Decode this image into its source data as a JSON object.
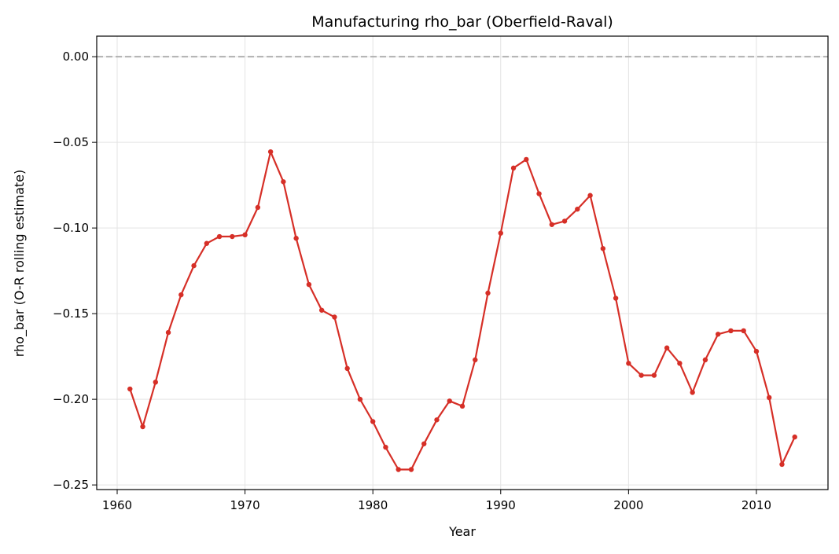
{
  "chart_data": {
    "type": "line",
    "title": "Manufacturing rho_bar (Oberfield-Raval)",
    "xlabel": "Year",
    "ylabel": "rho_bar (O-R rolling estimate)",
    "xlim": [
      1958.4,
      2015.6
    ],
    "ylim": [
      -0.2527,
      0.012
    ],
    "xticks": [
      1960,
      1970,
      1980,
      1990,
      2000,
      2010
    ],
    "yticks": [
      0.0,
      -0.05,
      -0.1,
      -0.15,
      -0.2,
      -0.25
    ],
    "ytick_labels": [
      "0.00",
      "−0.05",
      "−0.10",
      "−0.15",
      "−0.20",
      "−0.25"
    ],
    "grid": true,
    "reference_line": {
      "y": 0.0,
      "style": "dashed",
      "color": "#b0b0b0"
    },
    "series": [
      {
        "color": "#d62f27",
        "marker": "circle",
        "x": [
          1961,
          1962,
          1963,
          1964,
          1965,
          1966,
          1967,
          1968,
          1969,
          1970,
          1971,
          1972,
          1973,
          1974,
          1975,
          1976,
          1977,
          1978,
          1979,
          1980,
          1981,
          1982,
          1983,
          1984,
          1985,
          1986,
          1987,
          1988,
          1989,
          1990,
          1991,
          1992,
          1993,
          1994,
          1995,
          1996,
          1997,
          1998,
          1999,
          2000,
          2001,
          2002,
          2003,
          2004,
          2005,
          2006,
          2007,
          2008,
          2009,
          2010,
          2011,
          2012,
          2013
        ],
        "y": [
          -0.194,
          -0.216,
          -0.19,
          -0.161,
          -0.139,
          -0.122,
          -0.109,
          -0.105,
          -0.105,
          -0.104,
          -0.088,
          -0.0555,
          -0.073,
          -0.106,
          -0.133,
          -0.148,
          -0.152,
          -0.182,
          -0.2,
          -0.213,
          -0.228,
          -0.241,
          -0.241,
          -0.226,
          -0.212,
          -0.201,
          -0.204,
          -0.177,
          -0.138,
          -0.103,
          -0.065,
          -0.06,
          -0.08,
          -0.098,
          -0.096,
          -0.089,
          -0.081,
          -0.112,
          -0.141,
          -0.179,
          -0.186,
          -0.186,
          -0.17,
          -0.179,
          -0.196,
          -0.177,
          -0.162,
          -0.16,
          -0.16,
          -0.172,
          -0.199,
          -0.238,
          -0.222
        ]
      }
    ]
  }
}
